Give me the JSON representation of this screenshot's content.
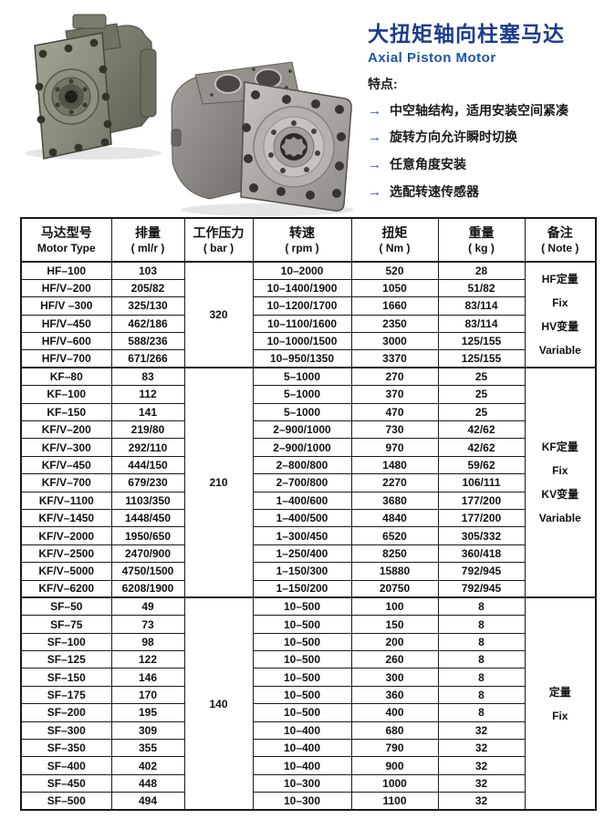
{
  "intro": {
    "title_zh": "大扭矩轴向柱塞马达",
    "title_en": "Axial Piston Motor",
    "features_label": "特点:",
    "arrow_glyph": "→",
    "features": [
      "中空轴结构，适用安装空间紧凑",
      "旋转方向允许瞬时切换",
      "任意角度安装",
      "选配转速传感器"
    ]
  },
  "photos": {
    "left_alt": "axial-piston-motor-front-flange-photo",
    "right_alt": "axial-piston-motor-side-flange-photo"
  },
  "table": {
    "columns": [
      {
        "zh": "马达型号",
        "en": "Motor Type"
      },
      {
        "zh": "排量",
        "en": "( ml/r )"
      },
      {
        "zh": "工作压力",
        "en": "( bar )"
      },
      {
        "zh": "转速",
        "en": "( rpm )"
      },
      {
        "zh": "扭矩",
        "en": "( Nm )"
      },
      {
        "zh": "重量",
        "en": "( kg )"
      },
      {
        "zh": "备注",
        "en": "( Note )"
      }
    ],
    "sections": [
      {
        "pressure": "320",
        "note_lines": [
          "HF定量",
          "Fix",
          "HV变量",
          "Variable"
        ],
        "rows": [
          [
            "HF–100",
            "103",
            "10–2000",
            "520",
            "28"
          ],
          [
            "HF/V–200",
            "205/82",
            "10–1400/1900",
            "1050",
            "51/82"
          ],
          [
            "HF/V –300",
            "325/130",
            "10–1200/1700",
            "1660",
            "83/114"
          ],
          [
            "HF/V–450",
            "462/186",
            "10–1100/1600",
            "2350",
            "83/114"
          ],
          [
            "HF/V–600",
            "588/236",
            "10–1000/1500",
            "3000",
            "125/155"
          ],
          [
            "HF/V–700",
            "671/266",
            "10–950/1350",
            "3370",
            "125/155"
          ]
        ]
      },
      {
        "pressure": "210",
        "note_lines": [
          "KF定量",
          "Fix",
          "KV变量",
          "Variable"
        ],
        "rows": [
          [
            "KF–80",
            "83",
            "5–1000",
            "270",
            "25"
          ],
          [
            "KF–100",
            "112",
            "5–1000",
            "370",
            "25"
          ],
          [
            "KF–150",
            "141",
            "5–1000",
            "470",
            "25"
          ],
          [
            "KF/V–200",
            "219/80",
            "2–900/1000",
            "730",
            "42/62"
          ],
          [
            "KF/V–300",
            "292/110",
            "2–900/1000",
            "970",
            "42/62"
          ],
          [
            "KF/V–450",
            "444/150",
            "2–800/800",
            "1480",
            "59/62"
          ],
          [
            "KF/V–700",
            "679/230",
            "2–700/800",
            "2270",
            "106/111"
          ],
          [
            "KF/V–1100",
            "1103/350",
            "1–400/600",
            "3680",
            "177/200"
          ],
          [
            "KF/V–1450",
            "1448/450",
            "1–400/500",
            "4840",
            "177/200"
          ],
          [
            "KF/V–2000",
            "1950/650",
            "1–300/450",
            "6520",
            "305/332"
          ],
          [
            "KF/V–2500",
            "2470/900",
            "1–250/400",
            "8250",
            "360/418"
          ],
          [
            "KF/V–5000",
            "4750/1500",
            "1–150/300",
            "15880",
            "792/945"
          ],
          [
            "KF/V–6200",
            "6208/1900",
            "1–150/200",
            "20750",
            "792/945"
          ]
        ]
      },
      {
        "pressure": "140",
        "note_lines": [
          "定量",
          "Fix"
        ],
        "rows": [
          [
            "SF–50",
            "49",
            "10–500",
            "100",
            "8"
          ],
          [
            "SF–75",
            "73",
            "10–500",
            "150",
            "8"
          ],
          [
            "SF–100",
            "98",
            "10–500",
            "200",
            "8"
          ],
          [
            "SF–125",
            "122",
            "10–500",
            "260",
            "8"
          ],
          [
            "SF–150",
            "146",
            "10–500",
            "300",
            "8"
          ],
          [
            "SF–175",
            "170",
            "10–500",
            "360",
            "8"
          ],
          [
            "SF–200",
            "195",
            "10–500",
            "400",
            "8"
          ],
          [
            "SF–300",
            "309",
            "10–400",
            "680",
            "32"
          ],
          [
            "SF–350",
            "355",
            "10–400",
            "790",
            "32"
          ],
          [
            "SF–400",
            "402",
            "10–400",
            "900",
            "32"
          ],
          [
            "SF–450",
            "448",
            "10–300",
            "1000",
            "32"
          ],
          [
            "SF–500",
            "494",
            "10–300",
            "1100",
            "32"
          ]
        ]
      }
    ]
  }
}
